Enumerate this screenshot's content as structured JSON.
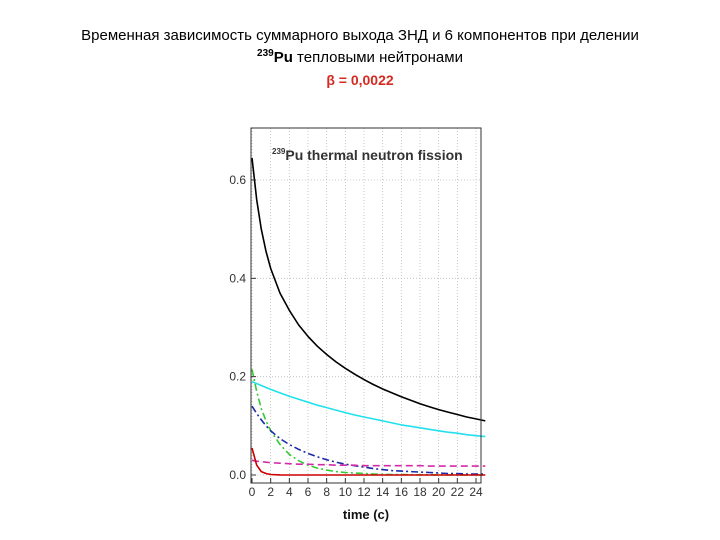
{
  "slide": {
    "title_line1": "Временная зависимость суммарного выхода ЗНД и 6 компонентов при делении",
    "title_isotope_mass": "239",
    "title_isotope": "Pu",
    "title_line2_rest": " тепловыми нейтронами",
    "beta": "β = 0,0022"
  },
  "chart_data": {
    "type": "line",
    "title_mass": "239",
    "title_rest": "Pu thermal neutron fission",
    "xlabel": "time (c)",
    "ylabel": "",
    "xlim": [
      0,
      25
    ],
    "ylim": [
      0,
      0.7
    ],
    "xticks": [
      0,
      2,
      4,
      6,
      8,
      10,
      12,
      14,
      16,
      18,
      20,
      22,
      24
    ],
    "yticks": [
      0.0,
      0.2,
      0.4,
      0.6
    ],
    "ytick_labels": [
      "0.0",
      "0.2",
      "0.4",
      "0.6"
    ],
    "grid": "dotted",
    "x": [
      0,
      0.5,
      1,
      1.5,
      2,
      3,
      4,
      5,
      6,
      7,
      8,
      9,
      10,
      11,
      12,
      13,
      14,
      15,
      16,
      17,
      18,
      19,
      20,
      21,
      22,
      23,
      24,
      25
    ],
    "series": [
      {
        "color": "#000000",
        "style": "solid",
        "values": [
          0.645,
          0.56,
          0.5,
          0.455,
          0.42,
          0.37,
          0.335,
          0.305,
          0.282,
          0.262,
          0.245,
          0.23,
          0.217,
          0.205,
          0.194,
          0.184,
          0.175,
          0.167,
          0.159,
          0.152,
          0.145,
          0.139,
          0.133,
          0.128,
          0.123,
          0.118,
          0.114,
          0.11
        ]
      },
      {
        "color": "#22e0ee",
        "style": "solid",
        "values": [
          0.19,
          0.186,
          0.182,
          0.178,
          0.174,
          0.167,
          0.16,
          0.154,
          0.148,
          0.142,
          0.137,
          0.132,
          0.127,
          0.122,
          0.118,
          0.114,
          0.11,
          0.106,
          0.102,
          0.099,
          0.096,
          0.093,
          0.09,
          0.087,
          0.085,
          0.082,
          0.08,
          0.078
        ]
      },
      {
        "color": "#33cc33",
        "style": "dashdot",
        "values": [
          0.215,
          0.17,
          0.135,
          0.11,
          0.09,
          0.062,
          0.042,
          0.029,
          0.02,
          0.014,
          0.01,
          0.007,
          0.005,
          0.004,
          0.003,
          0.002,
          0.0015,
          0.001,
          0.0008,
          0.0006,
          0.0005,
          0.0004,
          0.0003,
          0.0002,
          0.0002,
          0.0001,
          0.0001,
          0.0001
        ]
      },
      {
        "color": "#1a2aa8",
        "style": "dashdot",
        "values": [
          0.14,
          0.125,
          0.112,
          0.1,
          0.09,
          0.074,
          0.062,
          0.052,
          0.044,
          0.037,
          0.031,
          0.026,
          0.022,
          0.019,
          0.016,
          0.013,
          0.011,
          0.009,
          0.008,
          0.007,
          0.006,
          0.005,
          0.004,
          0.003,
          0.003,
          0.002,
          0.002,
          0.002
        ]
      },
      {
        "color": "#d42aa8",
        "style": "dashed",
        "values": [
          0.03,
          0.028,
          0.027,
          0.026,
          0.025,
          0.024,
          0.023,
          0.022,
          0.022,
          0.021,
          0.021,
          0.02,
          0.02,
          0.02,
          0.019,
          0.019,
          0.019,
          0.019,
          0.019,
          0.019,
          0.019,
          0.018,
          0.018,
          0.018,
          0.018,
          0.018,
          0.018,
          0.018
        ]
      },
      {
        "color": "#cc0000",
        "style": "solid",
        "values": [
          0.055,
          0.02,
          0.007,
          0.003,
          0.001,
          0.0003,
          0.0001,
          0,
          0,
          0,
          0,
          0,
          0,
          0,
          0,
          0,
          0,
          0,
          0,
          0,
          0,
          0,
          0,
          0,
          0,
          0,
          0,
          0
        ]
      }
    ]
  }
}
